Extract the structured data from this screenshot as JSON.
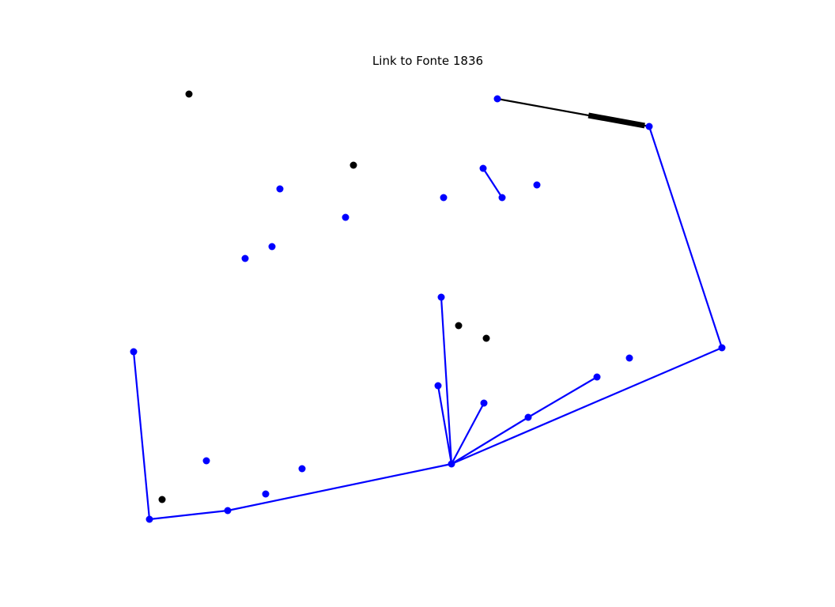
{
  "title": "Link to Fonte 1836",
  "colors": {
    "network": "#0000ff",
    "highlight": "#000000",
    "background": "#ffffff"
  },
  "nodes": [
    {
      "id": "n1",
      "color": "black"
    },
    {
      "id": "n2",
      "color": "blue"
    },
    {
      "id": "n3",
      "color": "blue"
    },
    {
      "id": "n4",
      "color": "black"
    },
    {
      "id": "n5",
      "color": "blue"
    },
    {
      "id": "n6",
      "color": "blue"
    },
    {
      "id": "n7",
      "color": "blue"
    },
    {
      "id": "n8",
      "color": "blue"
    },
    {
      "id": "n9",
      "color": "blue"
    },
    {
      "id": "n10",
      "color": "blue"
    },
    {
      "id": "n11",
      "color": "blue"
    },
    {
      "id": "n12",
      "color": "blue"
    },
    {
      "id": "n13",
      "color": "blue"
    },
    {
      "id": "n14",
      "color": "black"
    },
    {
      "id": "n15",
      "color": "black"
    },
    {
      "id": "n16",
      "color": "blue"
    },
    {
      "id": "n17",
      "color": "blue"
    },
    {
      "id": "n18",
      "color": "blue"
    },
    {
      "id": "n19",
      "color": "blue"
    },
    {
      "id": "n20",
      "color": "blue"
    },
    {
      "id": "n21",
      "color": "blue"
    },
    {
      "id": "n22",
      "color": "blue"
    },
    {
      "id": "n23",
      "color": "blue"
    },
    {
      "id": "n24",
      "color": "blue"
    },
    {
      "id": "n25",
      "color": "blue"
    },
    {
      "id": "n26",
      "color": "blue"
    },
    {
      "id": "n27",
      "color": "blue"
    },
    {
      "id": "n28",
      "color": "black"
    },
    {
      "id": "n29",
      "color": "blue"
    }
  ],
  "edges": [
    {
      "from": "n2",
      "to": "n3",
      "color": "black",
      "style": "thin"
    },
    {
      "from": "n3",
      "to": "n16",
      "color": "blue",
      "style": "normal"
    },
    {
      "from": "n5",
      "to": "n6",
      "color": "blue",
      "style": "normal"
    },
    {
      "from": "n13",
      "to": "n23",
      "color": "blue",
      "style": "normal"
    },
    {
      "from": "n19",
      "to": "n23",
      "color": "blue",
      "style": "normal"
    },
    {
      "from": "n20",
      "to": "n23",
      "color": "blue",
      "style": "normal"
    },
    {
      "from": "n21",
      "to": "n23",
      "color": "blue",
      "style": "normal"
    },
    {
      "from": "n18",
      "to": "n21",
      "color": "blue",
      "style": "normal"
    },
    {
      "from": "n16",
      "to": "n23",
      "color": "blue",
      "style": "normal"
    },
    {
      "from": "n23",
      "to": "n27",
      "color": "blue",
      "style": "normal"
    },
    {
      "from": "n27",
      "to": "n29",
      "color": "blue",
      "style": "normal"
    },
    {
      "from": "n29",
      "to": "n22",
      "color": "blue",
      "style": "normal"
    }
  ]
}
